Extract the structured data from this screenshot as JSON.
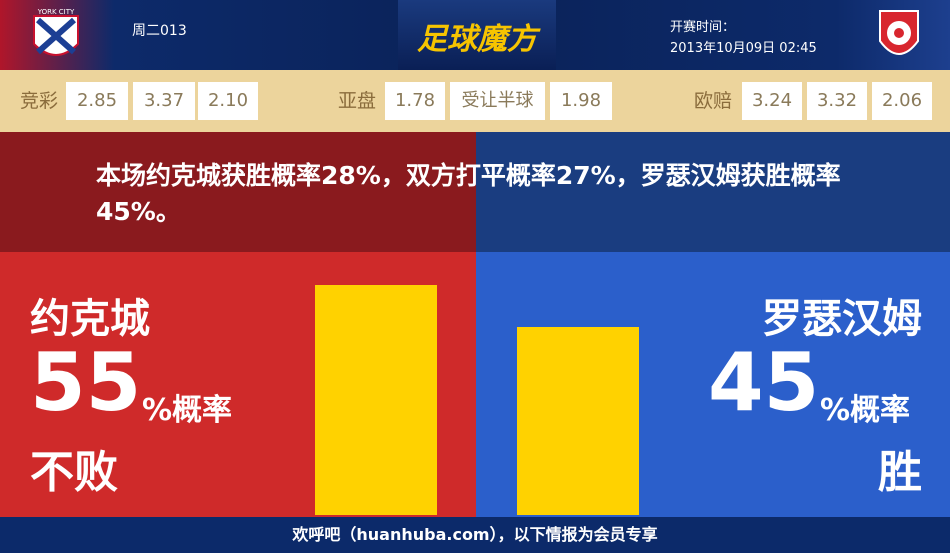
{
  "header": {
    "home_logo_text": "YORK CITY",
    "match_id": "周二013",
    "brand": "足球魔方",
    "kickoff_label": "开赛时间：",
    "kickoff": "2013年10月09日 02:45"
  },
  "odds": [
    {
      "label": "竞彩",
      "values": [
        "2.85",
        "3.37",
        "2.10"
      ]
    },
    {
      "label": "亚盘",
      "values": [
        "1.78",
        "受让半球",
        "1.98"
      ]
    },
    {
      "label": "欧赔",
      "values": [
        "3.24",
        "3.32",
        "2.06"
      ]
    }
  ],
  "summary": "本场约克城获胜概率28%，双方打平概率27%，罗瑟汉姆获胜概率45%。",
  "home": {
    "name": "约克城",
    "percent": 55,
    "percent_suffix": "%概率",
    "outcome": "不败"
  },
  "away": {
    "name": "罗瑟汉姆",
    "percent": 45,
    "percent_suffix": "%概率",
    "outcome": "胜"
  },
  "footer": "欢呼吧（huanhuba.com），以下情报为会员专享"
}
